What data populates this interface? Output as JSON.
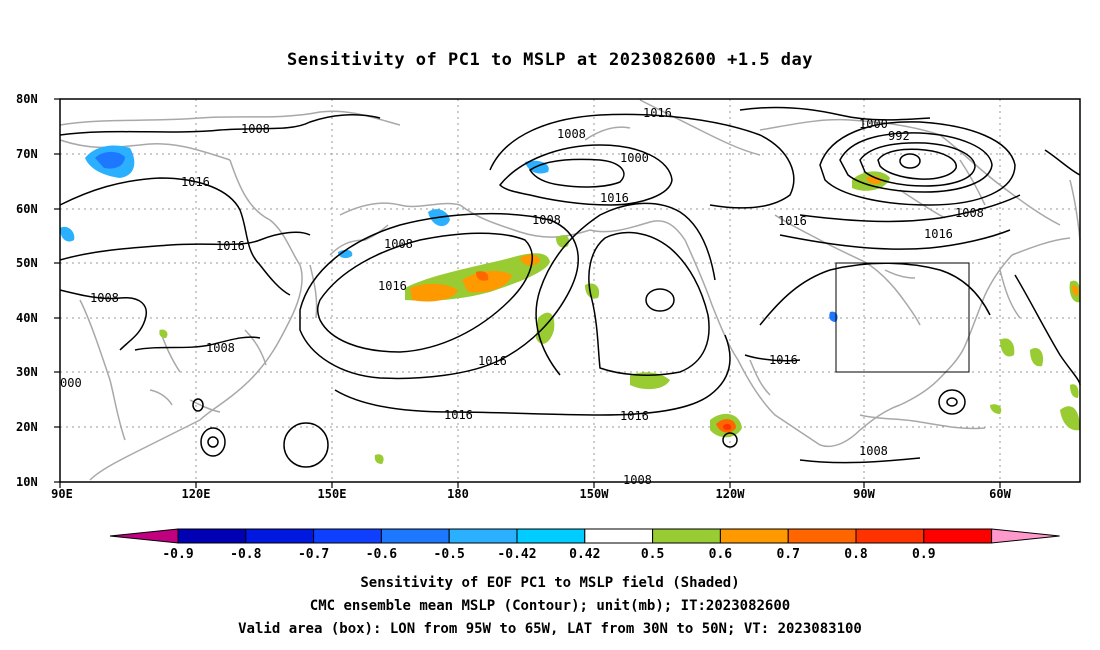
{
  "title": "Sensitivity of PC1 to MSLP at 2023082600 +1.5 day",
  "axes": {
    "lat_labels": [
      "80N",
      "70N",
      "60N",
      "50N",
      "40N",
      "30N",
      "20N",
      "10N"
    ],
    "lon_labels": [
      "90E",
      "120E",
      "150E",
      "180",
      "150W",
      "120W",
      "90W",
      "60W"
    ]
  },
  "contour_labels": [
    "1008",
    "1016",
    "1016",
    "1008",
    "1008",
    "1016",
    "1008",
    "1016",
    "1008",
    "1016",
    "1016",
    "1016",
    "1008",
    "1000",
    "1016",
    "1008",
    "1000",
    "992",
    "1008",
    "1016",
    "1016",
    "1008",
    "000",
    "1008"
  ],
  "colorbar": {
    "labels": [
      "-0.9",
      "-0.8",
      "-0.7",
      "-0.6",
      "-0.5",
      "-0.42",
      "0.42",
      "0.5",
      "0.6",
      "0.7",
      "0.8",
      "0.9"
    ],
    "colors": [
      "#c0007f",
      "#0000b4",
      "#0018e0",
      "#1040ff",
      "#1e78ff",
      "#2ab0ff",
      "#00ccff",
      "#ffffff",
      "#99cc33",
      "#ff9900",
      "#ff6600",
      "#ff3300",
      "#ff0000",
      "#ff99cc"
    ]
  },
  "valid_box": {
    "lon": [
      -95,
      -65
    ],
    "lat": [
      30,
      50
    ]
  },
  "captions": [
    "Sensitivity of EOF PC1 to MSLP field (Shaded)",
    "CMC ensemble mean MSLP (Contour); unit(mb); IT:2023082600",
    "Valid area (box): LON from 95W to 65W, LAT from 30N to 50N; VT: 2023083100"
  ]
}
